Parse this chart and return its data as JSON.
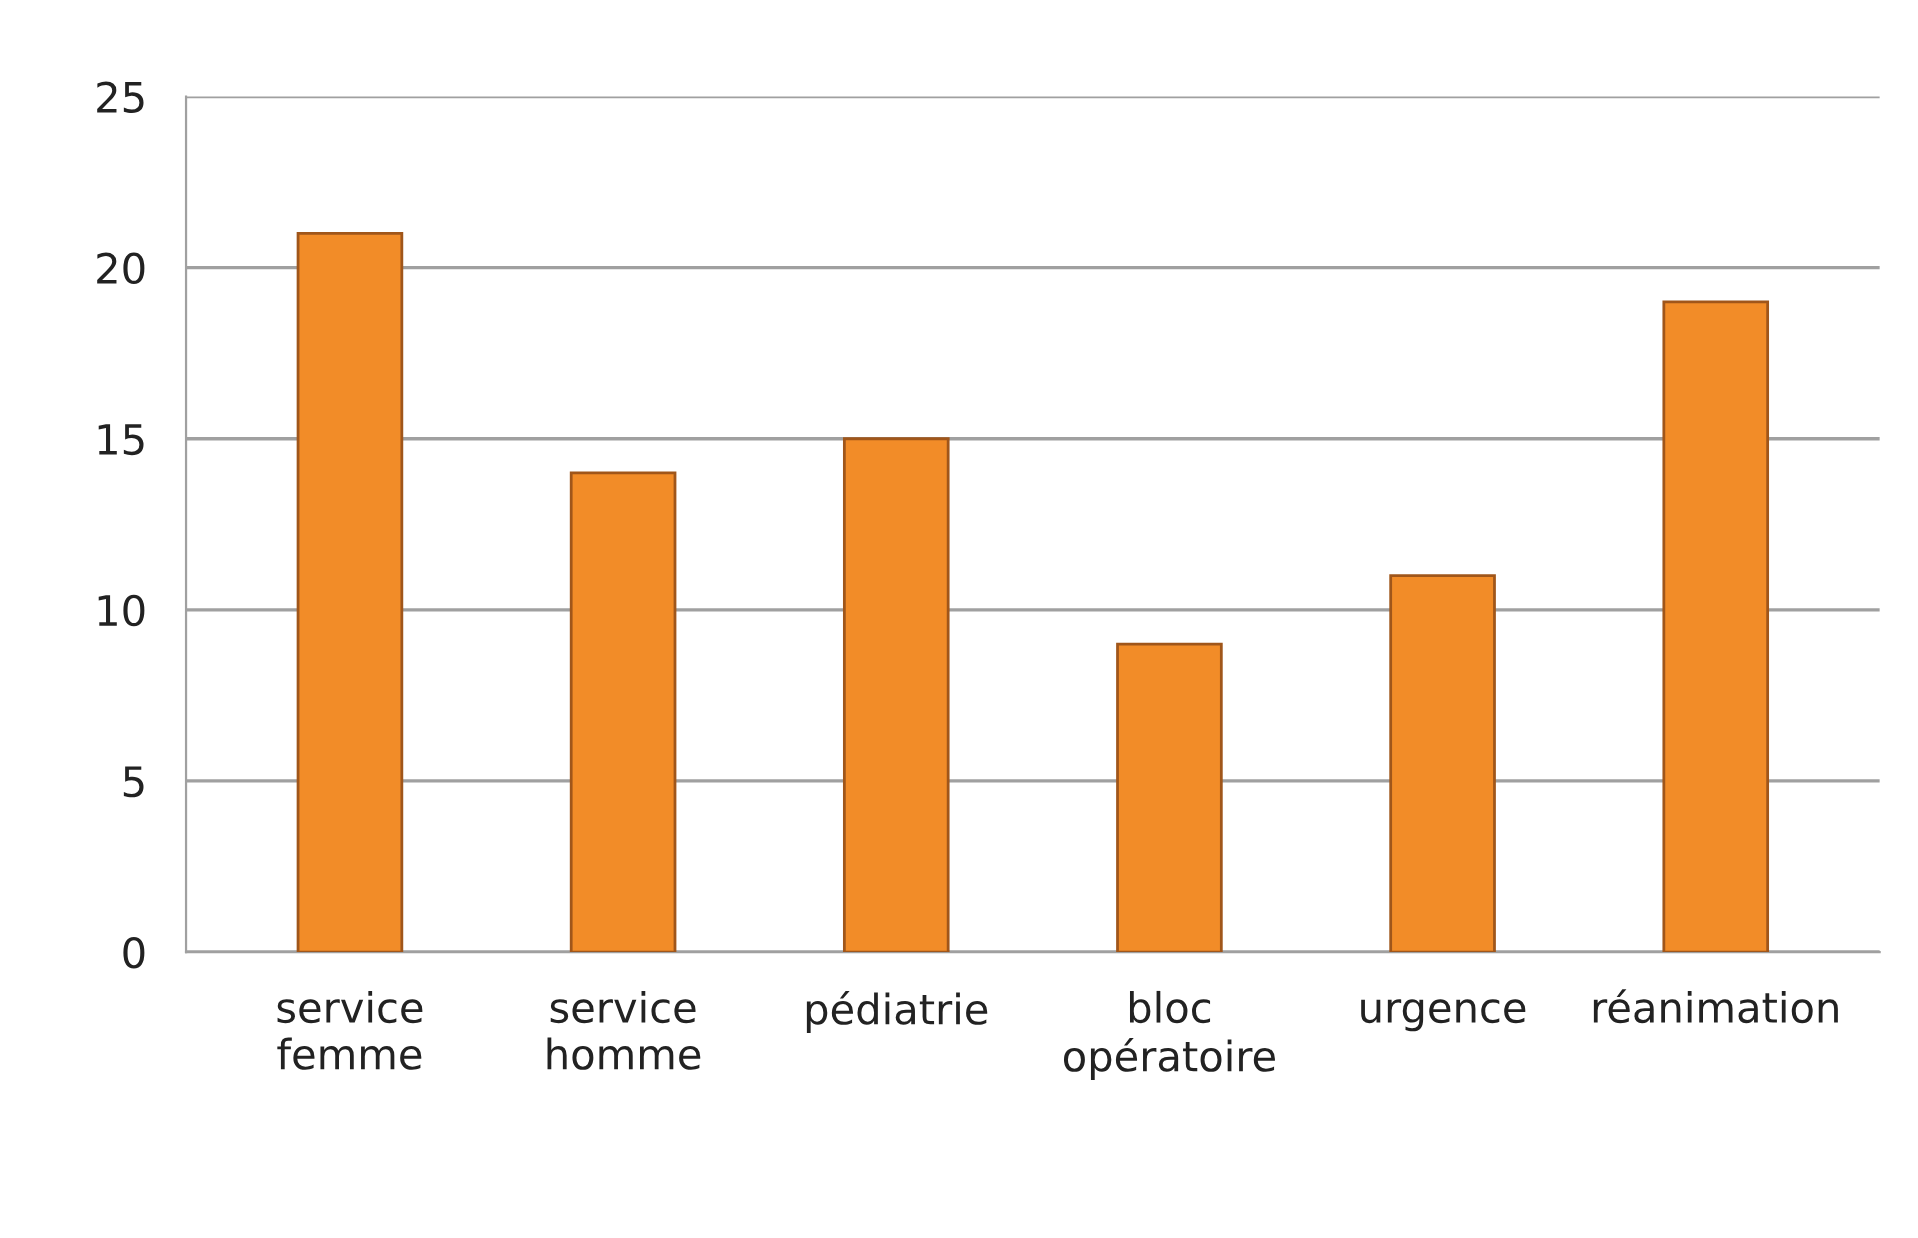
{
  "chart_data": {
    "type": "bar",
    "categories": [
      "service\nfemme",
      "service\nhomme",
      "pédiatrie",
      "bloc\nopératoire",
      "urgence",
      "réanimation"
    ],
    "values": [
      21,
      14,
      15,
      9,
      11,
      19
    ],
    "color": "#f28c28",
    "ylim": [
      0,
      25
    ],
    "yticks": [
      0,
      5,
      10,
      15,
      20,
      25
    ],
    "grid": "y"
  }
}
